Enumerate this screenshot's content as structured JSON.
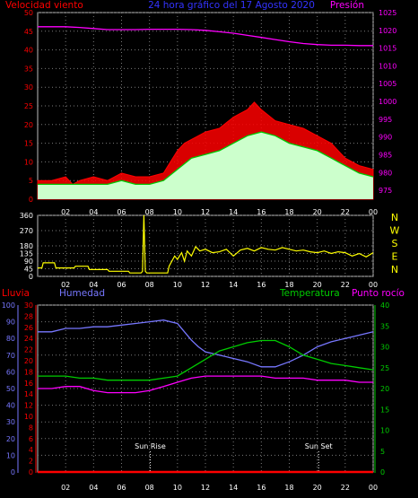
{
  "colors": {
    "wind_speed": "#ff0000",
    "wind_gust_fill": "#ccffcc",
    "wind_avg": "#00c800",
    "pressure": "#ff00ff",
    "direction": "#ffff00",
    "rain": "#ff0000",
    "humidity": "#7777ff",
    "temperature": "#00cc00",
    "dewpoint": "#ff00ff",
    "frame": "#bbbbbb",
    "grid": "#7a7a7a",
    "sun_marker": "#ffffff"
  },
  "chart_data": [
    {
      "type": "line",
      "name": "wind_pressure",
      "title": "24 hora gráfico del  17 Agosto 2020",
      "left_title": "Velocidad viento",
      "right_title": "Presión",
      "x_ticks": [
        "02",
        "04",
        "06",
        "08",
        "10",
        "12",
        "14",
        "16",
        "18",
        "20",
        "22",
        "00"
      ],
      "xlim": [
        0,
        24
      ],
      "ylim": [
        0,
        50
      ],
      "y_ticks": [
        0,
        5,
        10,
        15,
        20,
        25,
        30,
        35,
        40,
        45,
        50
      ],
      "y2lim": [
        972.5,
        1025
      ],
      "y2_ticks": [
        975,
        980,
        985,
        990,
        995,
        1000,
        1005,
        1010,
        1015,
        1020,
        1025
      ],
      "series": [
        {
          "key": "gust",
          "x": [
            0,
            1,
            2,
            2.5,
            3,
            4,
            5,
            6,
            7,
            8,
            9,
            9.5,
            10,
            10.5,
            11,
            11.5,
            12,
            13,
            14,
            15,
            15.5,
            16,
            17,
            18,
            19,
            20,
            21,
            22,
            23,
            24
          ],
          "y": [
            5,
            5,
            6,
            4,
            5,
            6,
            5,
            7,
            6,
            6,
            7,
            10,
            13,
            15,
            16,
            17,
            18,
            19,
            22,
            24,
            26,
            24,
            21,
            20,
            19,
            17,
            15,
            11,
            9,
            8
          ]
        },
        {
          "key": "avg",
          "x": [
            0,
            1,
            2,
            3,
            4,
            5,
            6,
            7,
            8,
            9,
            10,
            11,
            12,
            13,
            14,
            15,
            16,
            17,
            18,
            19,
            20,
            21,
            22,
            23,
            24
          ],
          "y": [
            4,
            4,
            4,
            4,
            4,
            4,
            5,
            4,
            4,
            5,
            8,
            11,
            12,
            13,
            15,
            17,
            18,
            17,
            15,
            14,
            13,
            11,
            9,
            7,
            6
          ]
        },
        {
          "key": "pressure",
          "x": [
            0,
            1,
            2,
            3,
            4,
            5,
            6,
            7,
            8,
            9,
            10,
            11,
            12,
            13,
            14,
            15,
            16,
            17,
            18,
            19,
            20,
            21,
            22,
            23,
            24
          ],
          "y": [
            1021,
            1021,
            1021,
            1020.8,
            1020.5,
            1020.2,
            1020.2,
            1020.2,
            1020.3,
            1020.3,
            1020.3,
            1020.2,
            1020,
            1019.6,
            1019.2,
            1018.6,
            1018,
            1017.4,
            1016.8,
            1016.3,
            1016,
            1015.8,
            1015.8,
            1015.7,
            1015.7
          ]
        }
      ]
    },
    {
      "type": "line",
      "name": "wind_direction",
      "x_ticks": [
        "02",
        "04",
        "06",
        "08",
        "10",
        "12",
        "14",
        "16",
        "18",
        "20",
        "22",
        "00"
      ],
      "xlim": [
        0,
        24
      ],
      "ylim": [
        0,
        360
      ],
      "y_ticks": [
        0,
        45,
        90,
        135,
        180,
        270,
        360
      ],
      "compass": [
        "N",
        "W",
        "S",
        "E",
        "N"
      ],
      "series": [
        {
          "key": "direction",
          "x": [
            0,
            0.3,
            0.4,
            1.2,
            1.3,
            2.6,
            2.7,
            3.6,
            3.7,
            5,
            5.1,
            6.5,
            6.6,
            7.4,
            7.5,
            7.6,
            7.7,
            7.8,
            9.3,
            9.4,
            9.8,
            10,
            10.3,
            10.5,
            10.7,
            11,
            11.3,
            11.6,
            12,
            12.5,
            13,
            13.5,
            14,
            14.5,
            15,
            15.5,
            16,
            16.5,
            17,
            17.5,
            18,
            18.5,
            19,
            19.5,
            20,
            20.5,
            21,
            21.5,
            22,
            22.5,
            23,
            23.5,
            24
          ],
          "y": [
            50,
            50,
            80,
            80,
            50,
            50,
            60,
            60,
            40,
            40,
            30,
            30,
            20,
            20,
            30,
            360,
            30,
            20,
            20,
            60,
            120,
            100,
            140,
            90,
            150,
            120,
            175,
            150,
            160,
            140,
            145,
            160,
            120,
            155,
            165,
            150,
            170,
            160,
            155,
            170,
            160,
            150,
            155,
            145,
            140,
            150,
            135,
            145,
            140,
            120,
            135,
            115,
            140
          ]
        }
      ]
    },
    {
      "type": "line",
      "name": "climate",
      "left_title_1": "Lluvia",
      "left_title_2": "Humedad",
      "right_title_1": "Temperatura",
      "right_title_2": "Punto rocío",
      "annotations": [
        {
          "label": "Sun Rise",
          "x": 8.05
        },
        {
          "label": "Sun Set",
          "x": 20.1
        }
      ],
      "x_ticks": [
        "02",
        "04",
        "06",
        "08",
        "10",
        "12",
        "14",
        "16",
        "18",
        "20",
        "22",
        "00"
      ],
      "xlim": [
        0,
        24
      ],
      "humidity_ticks": [
        0,
        10,
        20,
        30,
        40,
        50,
        60,
        70,
        80,
        90,
        100
      ],
      "humidity_lim": [
        0,
        100
      ],
      "rain_ticks": [
        0,
        2,
        4,
        6,
        8,
        10,
        12,
        14,
        16,
        18,
        20,
        22,
        24,
        26,
        28,
        30
      ],
      "rain_lim": [
        0,
        30
      ],
      "temp_ticks": [
        0,
        5,
        10,
        15,
        20,
        25,
        30,
        35,
        40
      ],
      "temp_lim": [
        0,
        40
      ],
      "series": [
        {
          "key": "humidity",
          "x": [
            0,
            1,
            2,
            3,
            4,
            5,
            6,
            7,
            8,
            9,
            10,
            10.5,
            11,
            11.5,
            12,
            13,
            14,
            15,
            16,
            17,
            18,
            19,
            20,
            21,
            22,
            23,
            24
          ],
          "y": [
            84,
            84,
            86,
            86,
            87,
            87,
            88,
            89,
            90,
            91,
            89,
            84,
            79,
            75,
            72,
            70,
            68,
            66,
            63,
            63,
            66,
            70,
            75,
            78,
            80,
            82,
            84
          ]
        },
        {
          "key": "temperature",
          "x": [
            0,
            1,
            2,
            3,
            4,
            5,
            6,
            7,
            8,
            9,
            10,
            11,
            12,
            13,
            14,
            15,
            16,
            17,
            18,
            19,
            20,
            21,
            22,
            23,
            24
          ],
          "y": [
            23,
            23,
            23,
            22.5,
            22.5,
            22,
            22,
            22,
            22,
            22.5,
            23,
            25,
            27,
            29,
            30,
            31,
            31.5,
            31.5,
            30,
            28,
            27,
            26,
            25.5,
            25,
            24.5
          ]
        },
        {
          "key": "dewpoint",
          "x": [
            0,
            1,
            2,
            3,
            4,
            5,
            6,
            7,
            8,
            9,
            10,
            11,
            12,
            13,
            14,
            15,
            16,
            17,
            18,
            19,
            20,
            21,
            22,
            23,
            24
          ],
          "y": [
            20,
            20,
            20.5,
            20.5,
            19.5,
            19,
            19,
            19,
            19.5,
            20.5,
            21.5,
            22.5,
            23,
            23,
            23,
            23,
            23,
            22.5,
            22.5,
            22.5,
            22,
            22,
            22,
            21.5,
            21.5
          ]
        },
        {
          "key": "rain",
          "x": [
            0,
            24
          ],
          "y": [
            0,
            0
          ]
        }
      ]
    }
  ]
}
